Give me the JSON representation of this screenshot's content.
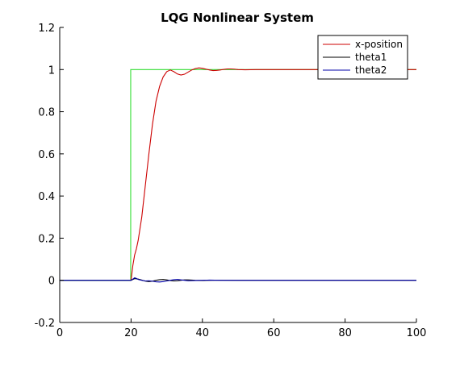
{
  "chart_data": {
    "type": "line",
    "title": "LQG Nonlinear System",
    "xlabel": "",
    "ylabel": "",
    "xlim": [
      0,
      100
    ],
    "ylim": [
      -0.2,
      1.2
    ],
    "x_ticks": [
      0,
      20,
      40,
      60,
      80,
      100
    ],
    "y_ticks": [
      -0.2,
      0,
      0.2,
      0.4,
      0.6,
      0.8,
      1,
      1.2
    ],
    "x_tick_labels": [
      "0",
      "20",
      "40",
      "60",
      "80",
      "100"
    ],
    "y_tick_labels": [
      "-0.2",
      "0",
      "0.2",
      "0.4",
      "0.6",
      "0.8",
      "1",
      "1.2"
    ],
    "grid": false,
    "legend_position": "top-right",
    "series": [
      {
        "name": "x-position",
        "color": "#cc0000",
        "x": [
          20,
          20.5,
          21,
          21.5,
          22,
          23,
          24,
          25,
          26,
          27,
          28,
          29,
          30,
          31,
          32,
          33,
          34,
          35,
          36,
          37,
          38,
          39,
          40,
          41,
          42,
          43,
          44,
          45,
          46,
          47,
          48,
          49,
          50,
          52,
          55,
          60,
          70,
          80,
          90,
          100
        ],
        "y": [
          0,
          0.07,
          0.12,
          0.15,
          0.19,
          0.3,
          0.45,
          0.6,
          0.74,
          0.85,
          0.92,
          0.965,
          0.99,
          0.998,
          0.99,
          0.979,
          0.974,
          0.978,
          0.988,
          0.998,
          1.005,
          1.008,
          1.006,
          1.002,
          0.998,
          0.995,
          0.996,
          0.998,
          1.001,
          1.003,
          1.003,
          1.002,
          1.0,
          0.999,
          1.0,
          1.0,
          1.0,
          1.0,
          1.0,
          1.0
        ]
      },
      {
        "name": "theta1",
        "color": "#000000",
        "x": [
          0,
          20,
          21,
          22,
          23,
          24,
          25,
          26,
          27,
          28,
          29,
          30,
          31,
          32,
          33,
          34,
          35,
          36,
          37,
          38,
          40,
          42,
          45,
          50,
          60,
          100
        ],
        "y": [
          0,
          0,
          0.008,
          0.006,
          0.001,
          -0.004,
          -0.006,
          -0.004,
          0.0,
          0.003,
          0.004,
          0.002,
          -0.001,
          -0.003,
          -0.002,
          0.0,
          0.002,
          0.002,
          0.001,
          0.0,
          -0.001,
          0.0,
          0.0005,
          0.0,
          0.0,
          0.0
        ]
      },
      {
        "name": "theta2",
        "color": "#0000aa",
        "x": [
          0,
          20,
          20.5,
          21,
          21.5,
          22,
          23,
          24,
          25,
          26,
          27,
          28,
          29,
          30,
          31,
          32,
          33,
          34,
          35,
          36,
          38,
          40,
          42,
          45,
          50,
          60,
          100
        ],
        "y": [
          0,
          0,
          0.006,
          0.012,
          0.009,
          0.004,
          0.0,
          -0.003,
          -0.002,
          -0.004,
          -0.007,
          -0.008,
          -0.006,
          -0.003,
          0.0,
          0.003,
          0.004,
          0.002,
          0.0,
          -0.002,
          -0.001,
          0.0,
          0.001,
          0.0,
          0.0,
          0.0,
          0.0
        ]
      },
      {
        "name": "",
        "color": "#33dd33",
        "x": [
          0,
          19.9,
          19.9,
          100
        ],
        "y": [
          0,
          0,
          1,
          1
        ]
      }
    ]
  }
}
